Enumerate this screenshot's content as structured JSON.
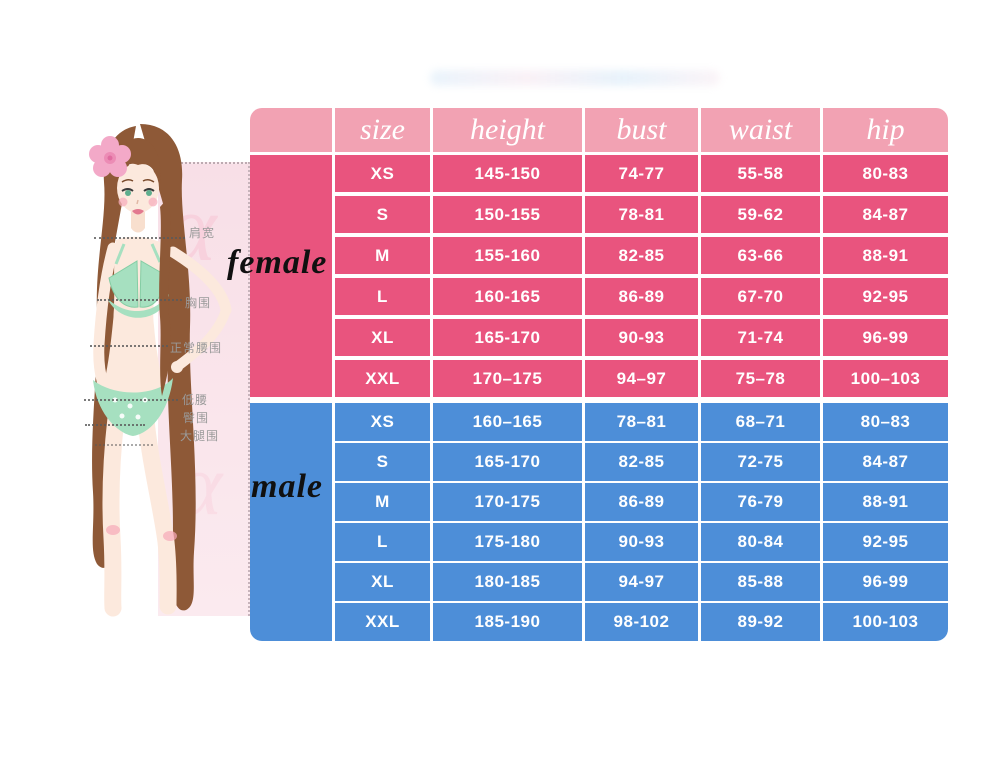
{
  "colors": {
    "header_pink": "#F2A2B3",
    "female_pink": "#E9547E",
    "male_blue": "#4D8ED8",
    "panel_pink": "#F8E0E8",
    "cell_text": "#FFFFFF",
    "gender_label_text": "#101010"
  },
  "illustration": {
    "alpha_glyph": "α",
    "measure_labels": [
      {
        "id": "shoulder-width",
        "text": "肩宽"
      },
      {
        "id": "bust",
        "text": "胸围"
      },
      {
        "id": "normal-waist",
        "text": "正常腰围"
      },
      {
        "id": "low-waist",
        "text": "低腰"
      },
      {
        "id": "hip",
        "text": "臀围"
      },
      {
        "id": "thigh",
        "text": "大腿围"
      }
    ]
  },
  "chart_data": {
    "type": "table",
    "headers": [
      "",
      "size",
      "height",
      "bust",
      "waist",
      "hip"
    ],
    "sections": [
      {
        "gender": "female",
        "color": "#E9547E",
        "rows": [
          [
            "XS",
            "145-150",
            "74-77",
            "55-58",
            "80-83"
          ],
          [
            "S",
            "150-155",
            "78-81",
            "59-62",
            "84-87"
          ],
          [
            "M",
            "155-160",
            "82-85",
            "63-66",
            "88-91"
          ],
          [
            "L",
            "160-165",
            "86-89",
            "67-70",
            "92-95"
          ],
          [
            "XL",
            "165-170",
            "90-93",
            "71-74",
            "96-99"
          ],
          [
            "XXL",
            "170–175",
            "94–97",
            "75–78",
            "100–103"
          ]
        ]
      },
      {
        "gender": "male",
        "color": "#4D8ED8",
        "rows": [
          [
            "XS",
            "160–165",
            "78–81",
            "68–71",
            "80–83"
          ],
          [
            "S",
            "165-170",
            "82-85",
            "72-75",
            "84-87"
          ],
          [
            "M",
            "170-175",
            "86-89",
            "76-79",
            "88-91"
          ],
          [
            "L",
            "175-180",
            "90-93",
            "80-84",
            "92-95"
          ],
          [
            "XL",
            "180-185",
            "94-97",
            "85-88",
            "96-99"
          ],
          [
            "XXL",
            "185-190",
            "98-102",
            "89-92",
            "100-103"
          ]
        ]
      }
    ]
  }
}
